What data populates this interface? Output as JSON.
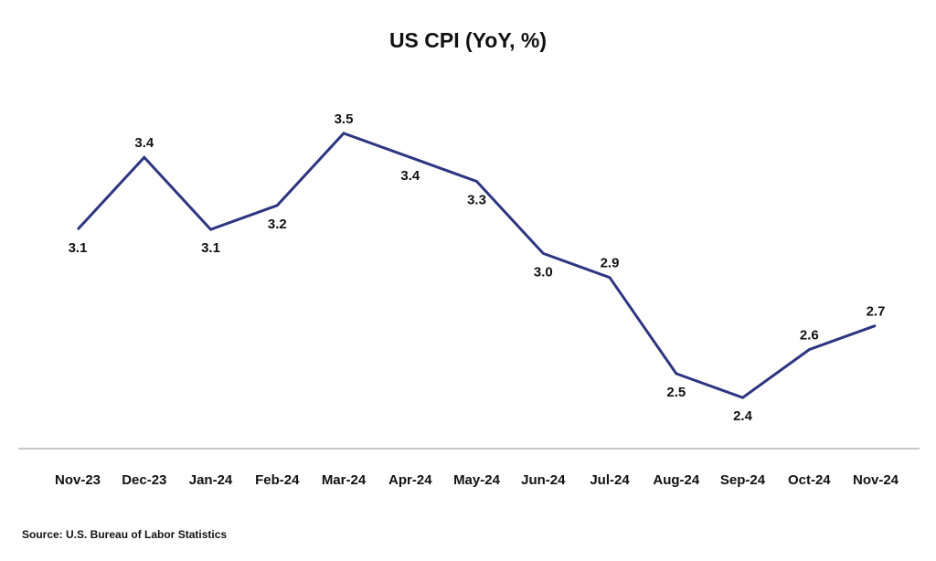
{
  "chart_data": {
    "type": "line",
    "title": "US CPI (YoY, %)",
    "xlabel": "",
    "ylabel": "",
    "categories": [
      "Nov-23",
      "Dec-23",
      "Jan-24",
      "Feb-24",
      "Mar-24",
      "Apr-24",
      "May-24",
      "Jun-24",
      "Jul-24",
      "Aug-24",
      "Sep-24",
      "Oct-24",
      "Nov-24"
    ],
    "series": [
      {
        "values": [
          3.1,
          3.4,
          3.1,
          3.2,
          3.5,
          3.4,
          3.3,
          3.0,
          2.9,
          2.5,
          2.4,
          2.6,
          2.7
        ],
        "data_labels": [
          "3.1",
          "3.4",
          "3.1",
          "3.2",
          "3.5",
          "3.4",
          "3.3",
          "3.0",
          "2.9",
          "2.5",
          "2.4",
          "2.6",
          "2.7"
        ],
        "label_positions": [
          "below",
          "above",
          "below",
          "below",
          "above",
          "below",
          "below",
          "below",
          "above",
          "below",
          "below",
          "above",
          "above"
        ],
        "color": "#2e3581"
      }
    ],
    "ylim": [
      1.8,
      3.8
    ],
    "grid": false,
    "legend": "none",
    "source": "Source: U.S. Bureau of Labor Statistics",
    "axis_color": "#b5b5b5"
  }
}
